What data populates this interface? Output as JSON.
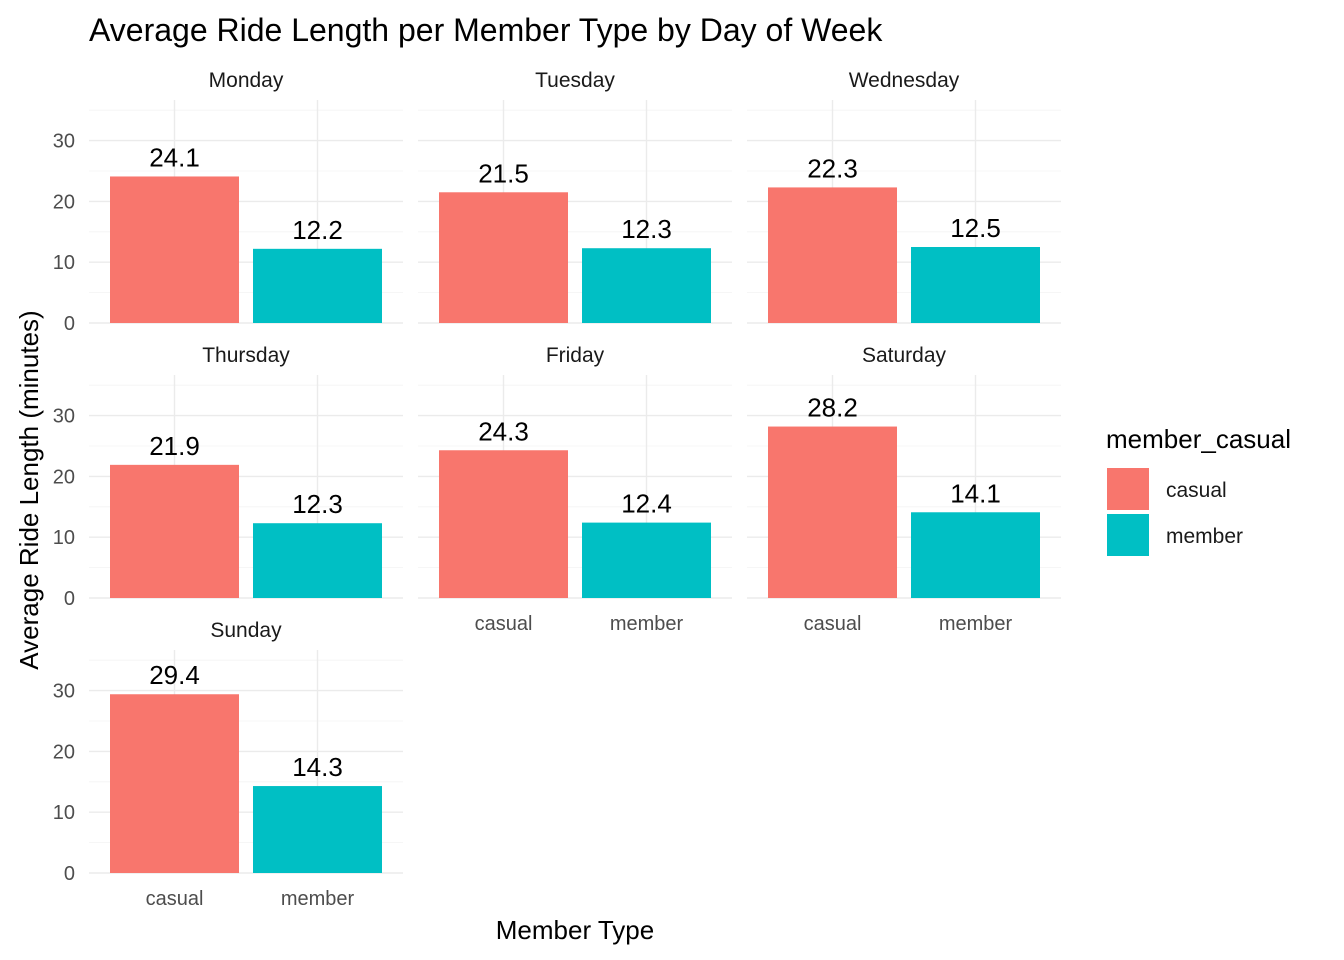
{
  "chart_data": {
    "type": "bar",
    "title": "Average Ride Length per Member Type by Day of Week",
    "xlabel": "Member Type",
    "ylabel": "Average Ride Length (minutes)",
    "ylim": [
      0,
      35
    ],
    "yticks": [
      0,
      10,
      20,
      30
    ],
    "grid": true,
    "categories": [
      "casual",
      "member"
    ],
    "legend": {
      "title": "member_casual",
      "placement": "right",
      "entries": [
        {
          "label": "casual",
          "color": "#F8766D"
        },
        {
          "label": "member",
          "color": "#00BFC4"
        }
      ]
    },
    "facets": [
      {
        "name": "Monday",
        "values": [
          24.1,
          12.2
        ],
        "labels": [
          "24.1",
          "12.2"
        ]
      },
      {
        "name": "Tuesday",
        "values": [
          21.5,
          12.3
        ],
        "labels": [
          "21.5",
          "12.3"
        ]
      },
      {
        "name": "Wednesday",
        "values": [
          22.3,
          12.5
        ],
        "labels": [
          "22.3",
          "12.5"
        ]
      },
      {
        "name": "Thursday",
        "values": [
          21.9,
          12.3
        ],
        "labels": [
          "21.9",
          "12.3"
        ]
      },
      {
        "name": "Friday",
        "values": [
          24.3,
          12.4
        ],
        "labels": [
          "24.3",
          "12.4"
        ]
      },
      {
        "name": "Saturday",
        "values": [
          28.2,
          14.1
        ],
        "labels": [
          "28.2",
          "14.1"
        ]
      },
      {
        "name": "Sunday",
        "values": [
          29.4,
          14.3
        ],
        "labels": [
          "29.4",
          "14.3"
        ]
      }
    ]
  }
}
